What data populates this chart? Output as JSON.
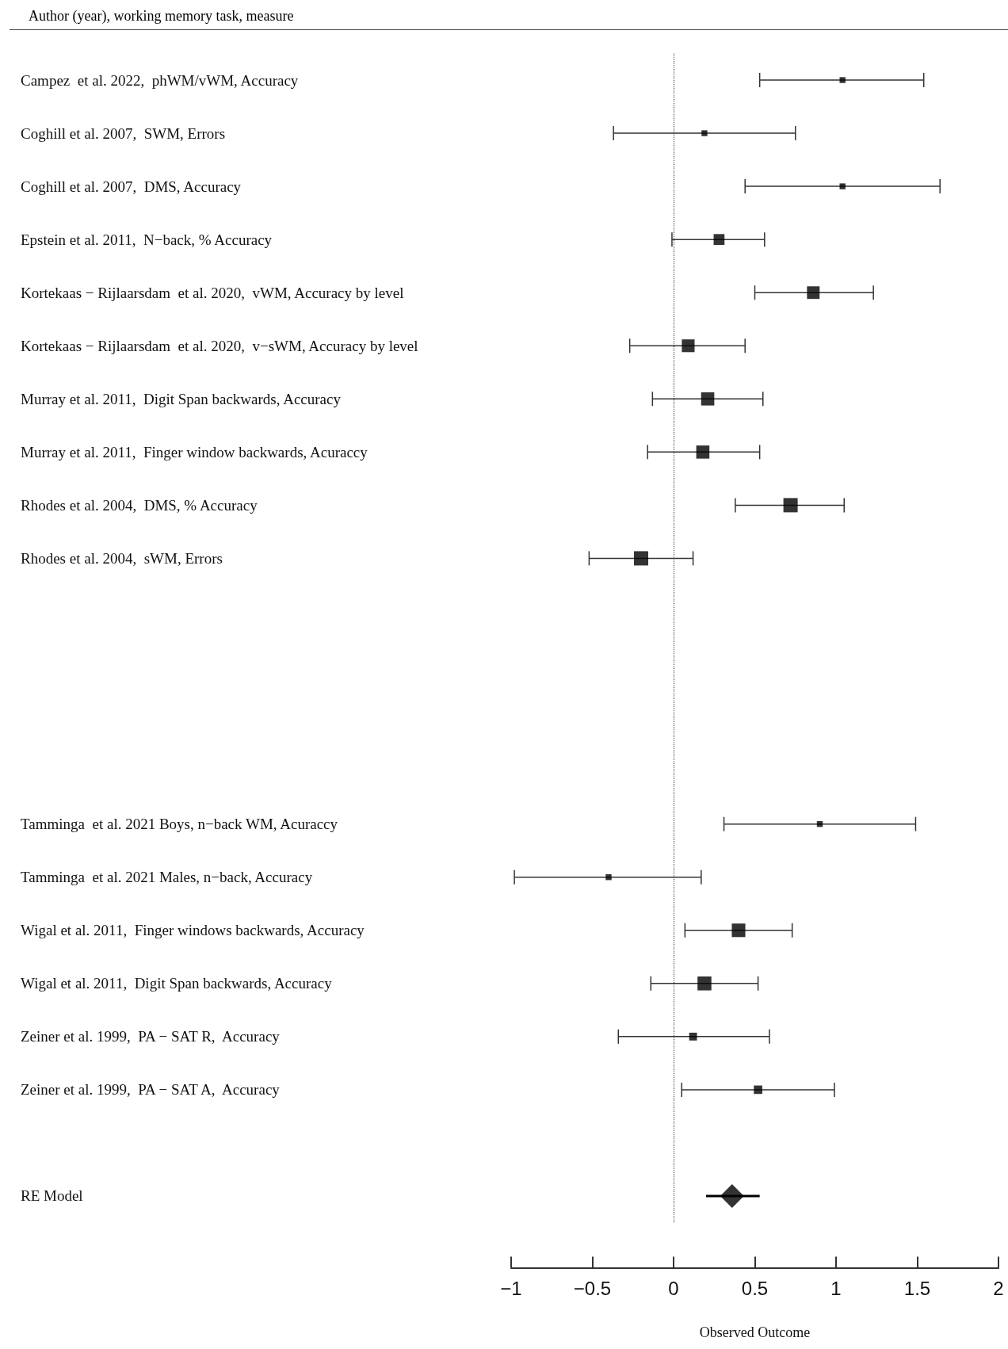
{
  "chart_data": {
    "type": "scatter",
    "orientation": "horizontal",
    "ylabel": "Author (year), working memory task, measure",
    "xlabel": "Observed Outcome",
    "categories": [
      "Campez  et al. 2022,  phWM/vWM, Accuracy",
      "Coghill et al. 2007,  SWM, Errors",
      "Coghill et al. 2007,  DMS, Accuracy",
      "Epstein et al. 2011,  N−back, % Accuracy",
      "Kortekaas − Rijlaarsdam  et al. 2020,  vWM, Accuracy by level",
      "Kortekaas − Rijlaarsdam  et al. 2020,  v−sWM, Accuracy by level",
      "Murray et al. 2011,  Digit Span backwards, Accuracy",
      "Murray et al. 2011,  Finger window backwards, Acuraccy",
      "Rhodes et al. 2004,  DMS, % Accuracy",
      "Rhodes et al. 2004,  sWM, Errors",
      null,
      null,
      null,
      null,
      "Tamminga  et al. 2021 Boys, n−back WM, Acuraccy",
      "Tamminga  et al. 2021 Males, n−back, Accuracy",
      "Wigal et al. 2011,  Finger windows backwards, Accuracy",
      "Wigal et al. 2011,  Digit Span backwards, Accuracy",
      "Zeiner et al. 1999,  PA − SAT R,  Accuracy",
      "Zeiner et al. 1999,  PA − SAT A,  Accuracy",
      null,
      "RE Model"
    ],
    "xlim": [
      -1,
      2
    ],
    "xticks": [
      {
        "value": -1,
        "label": "−1"
      },
      {
        "value": -0.5,
        "label": "−0.5"
      },
      0,
      0.5,
      1,
      1.5,
      2
    ],
    "ref_lines": [
      {
        "axis": "x",
        "value": 0,
        "line_style": "dotted",
        "color": "#555555"
      }
    ],
    "series": [
      {
        "color": "#000000",
        "marker": "square",
        "values": [
          1.04,
          0.19,
          1.04,
          0.28,
          0.86,
          0.09,
          0.21,
          0.18,
          0.72,
          -0.2,
          null,
          null,
          null,
          null,
          0.9,
          -0.4,
          0.4,
          0.19,
          0.12,
          0.52,
          null,
          null
        ],
        "errors": [
          [
            0.53,
            1.54
          ],
          [
            -0.37,
            0.75
          ],
          [
            0.44,
            1.64
          ],
          [
            -0.01,
            0.56
          ],
          [
            0.5,
            1.23
          ],
          [
            -0.27,
            0.44
          ],
          [
            -0.13,
            0.55
          ],
          [
            -0.16,
            0.53
          ],
          [
            0.38,
            1.05
          ],
          [
            -0.52,
            0.12
          ],
          null,
          null,
          null,
          null,
          [
            0.31,
            1.49
          ],
          [
            -0.98,
            0.17
          ],
          [
            0.07,
            0.73
          ],
          [
            -0.14,
            0.52
          ],
          [
            -0.34,
            0.59
          ],
          [
            0.05,
            0.99
          ],
          null,
          null
        ],
        "sizes": [
          0.17,
          0.17,
          0.17,
          0.58,
          0.78,
          0.8,
          0.85,
          0.85,
          1,
          1,
          null,
          null,
          null,
          null,
          0.17,
          0.17,
          0.9,
          0.95,
          0.3,
          0.35,
          null,
          null
        ]
      },
      {
        "color": "#000000",
        "marker": "diamond",
        "values": [
          null,
          null,
          null,
          null,
          null,
          null,
          null,
          null,
          null,
          null,
          null,
          null,
          null,
          null,
          null,
          null,
          null,
          null,
          null,
          null,
          null,
          0.36
        ],
        "errors": [
          null,
          null,
          null,
          null,
          null,
          null,
          null,
          null,
          null,
          null,
          null,
          null,
          null,
          null,
          null,
          null,
          null,
          null,
          null,
          null,
          null,
          [
            0.2,
            0.53
          ]
        ]
      }
    ]
  }
}
